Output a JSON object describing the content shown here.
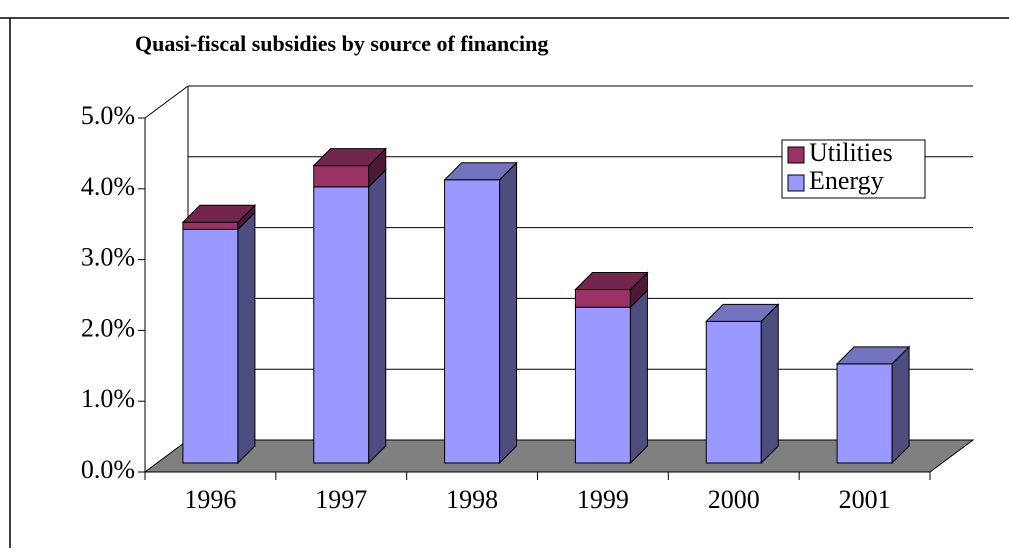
{
  "chart_data": {
    "type": "bar3d_stacked",
    "title": "Quasi-fiscal subsidies by source of financing",
    "categories": [
      "1996",
      "1997",
      "1998",
      "1999",
      "2000",
      "2001"
    ],
    "series": [
      {
        "name": "Energy",
        "color": "#9999ff",
        "values": [
          3.3,
          3.9,
          4.0,
          2.2,
          2.0,
          1.4
        ]
      },
      {
        "name": "Utilities",
        "color": "#993366",
        "values": [
          0.1,
          0.3,
          0,
          0.25,
          0,
          0
        ]
      }
    ],
    "ylim": [
      0,
      5
    ],
    "yticks": [
      {
        "value": 0,
        "label": "0.0%"
      },
      {
        "value": 1,
        "label": "1.0%"
      },
      {
        "value": 2,
        "label": "2.0%"
      },
      {
        "value": 3,
        "label": "3.0%"
      },
      {
        "value": 4,
        "label": "4.0%"
      },
      {
        "value": 5,
        "label": "5.0%"
      }
    ],
    "grid": true,
    "legend": "upper right"
  }
}
